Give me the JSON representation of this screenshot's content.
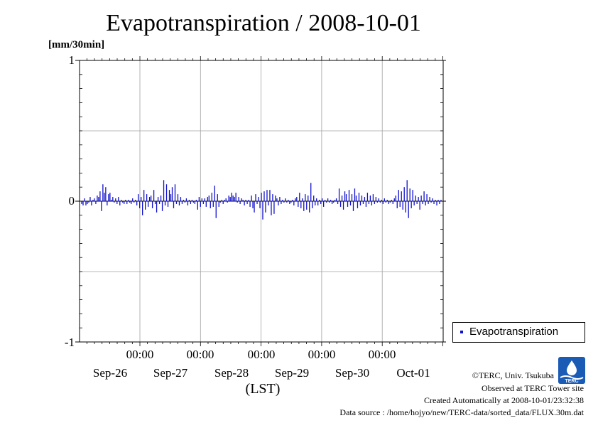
{
  "title": "Evapotranspiration / 2008-10-01",
  "unit_label": "[mm/30min]",
  "x_axis_label": "(LST)",
  "legend": {
    "label": "Evapotranspiration"
  },
  "footer": {
    "copyright": "©TERC, Univ. Tsukuba",
    "observed": "Observed at TERC Tower site",
    "created": "Created Automatically at 2008-10-01/23:32:38",
    "source": "Data source : /home/hojyo/new/TERC-data/sorted_data/FLUX.30m.dat"
  },
  "logo_text": "TERC",
  "colors": {
    "series": "#1010cc",
    "grid": "#a0a0a0",
    "axis": "#000000"
  },
  "chart_data": {
    "type": "bar",
    "title": "Evapotranspiration / 2008-10-01",
    "ylabel": "[mm/30min]",
    "xlabel": "(LST)",
    "ylim": [
      -1,
      1
    ],
    "yticks": [
      -1,
      0,
      1
    ],
    "grid": true,
    "legend_position": "bottom-right outside",
    "x_range": [
      "2008-09-25 12:00",
      "2008-10-01 24:00"
    ],
    "xtick_times": [
      "00:00",
      "00:00",
      "00:00",
      "00:00",
      "00:00"
    ],
    "xtick_dates": [
      "Sep-26",
      "Sep-27",
      "Sep-28",
      "Sep-29",
      "Sep-30",
      "Oct-01"
    ],
    "interval_minutes": 30,
    "series": [
      {
        "name": "Evapotranspiration",
        "values": [
          -0.02,
          -0.03,
          0.02,
          -0.03,
          -0.02,
          -0.01,
          0.03,
          -0.03,
          0.01,
          0.02,
          -0.02,
          0.04,
          0.03,
          0.07,
          -0.07,
          0.12,
          0.06,
          0.1,
          -0.03,
          0.05,
          0.06,
          0.01,
          0.03,
          -0.01,
          0.02,
          -0.02,
          0.03,
          -0.03,
          0.01,
          -0.01,
          -0.02,
          0.01,
          -0.02,
          0.01,
          -0.01,
          -0.02,
          0.02,
          -0.01,
          0.01,
          -0.03,
          0.05,
          -0.05,
          0.03,
          -0.1,
          0.08,
          -0.06,
          0.05,
          -0.04,
          0.03,
          0.04,
          -0.05,
          0.08,
          -0.02,
          -0.08,
          0.03,
          -0.02,
          0.04,
          -0.07,
          0.15,
          -0.03,
          0.12,
          -0.04,
          0.08,
          0.05,
          0.1,
          -0.05,
          0.12,
          -0.02,
          0.05,
          -0.03,
          0.03,
          -0.02,
          0.01,
          -0.01,
          0.02,
          -0.03,
          0.01,
          -0.02,
          0.01,
          -0.01,
          -0.02,
          0.01,
          -0.06,
          0.03,
          -0.04,
          0.02,
          -0.02,
          0.02,
          -0.04,
          0.03,
          0.04,
          -0.05,
          0.06,
          -0.04,
          0.11,
          -0.12,
          0.05,
          -0.04,
          -0.01,
          0.01,
          -0.02,
          0.01,
          0.02,
          -0.01,
          0.04,
          0.03,
          0.06,
          0.04,
          0.03,
          0.06,
          -0.01,
          0.03,
          -0.02,
          0.02,
          0.01,
          -0.03,
          0.01,
          -0.02,
          0.01,
          -0.04,
          0.04,
          -0.05,
          -0.08,
          0.05,
          -0.02,
          0.03,
          -0.05,
          0.06,
          -0.13,
          0.07,
          -0.08,
          0.08,
          -0.03,
          0.08,
          -0.1,
          0.05,
          -0.09,
          0.04,
          0.02,
          -0.03,
          0.03,
          -0.02,
          0.01,
          -0.01,
          0.02,
          -0.01,
          0.01,
          -0.02,
          -0.01,
          0.01,
          -0.03,
          0.02,
          0.03,
          -0.04,
          0.06,
          -0.05,
          0.02,
          -0.07,
          0.05,
          -0.06,
          0.04,
          -0.08,
          0.13,
          -0.05,
          0.04,
          -0.03,
          0.02,
          -0.03,
          0.01,
          -0.02,
          0.02,
          -0.04,
          0.01,
          -0.01,
          0.02,
          -0.01,
          0.01,
          -0.02,
          -0.01,
          0.01,
          0.02,
          -0.02,
          0.09,
          -0.04,
          0.04,
          -0.06,
          0.07,
          0.05,
          -0.04,
          0.08,
          -0.03,
          0.05,
          -0.07,
          0.09,
          0.04,
          -0.05,
          0.06,
          -0.03,
          0.04,
          -0.02,
          0.03,
          -0.04,
          0.06,
          -0.02,
          0.04,
          -0.03,
          0.05,
          -0.02,
          0.03,
          -0.01,
          0.02,
          -0.01,
          0.01,
          -0.02,
          0.02,
          -0.01,
          0.01,
          -0.02,
          -0.01,
          0.01,
          -0.02,
          0.02,
          0.04,
          -0.05,
          0.08,
          -0.04,
          0.07,
          -0.06,
          0.1,
          -0.08,
          0.15,
          -0.12,
          0.09,
          -0.05,
          0.08,
          -0.03,
          0.04,
          -0.02,
          0.03,
          -0.06,
          0.04,
          -0.02,
          0.07,
          -0.03,
          0.05,
          -0.02,
          0.03,
          -0.01,
          0.02,
          -0.02,
          0.01,
          -0.03,
          0.01,
          -0.02,
          0.01
        ]
      }
    ]
  }
}
